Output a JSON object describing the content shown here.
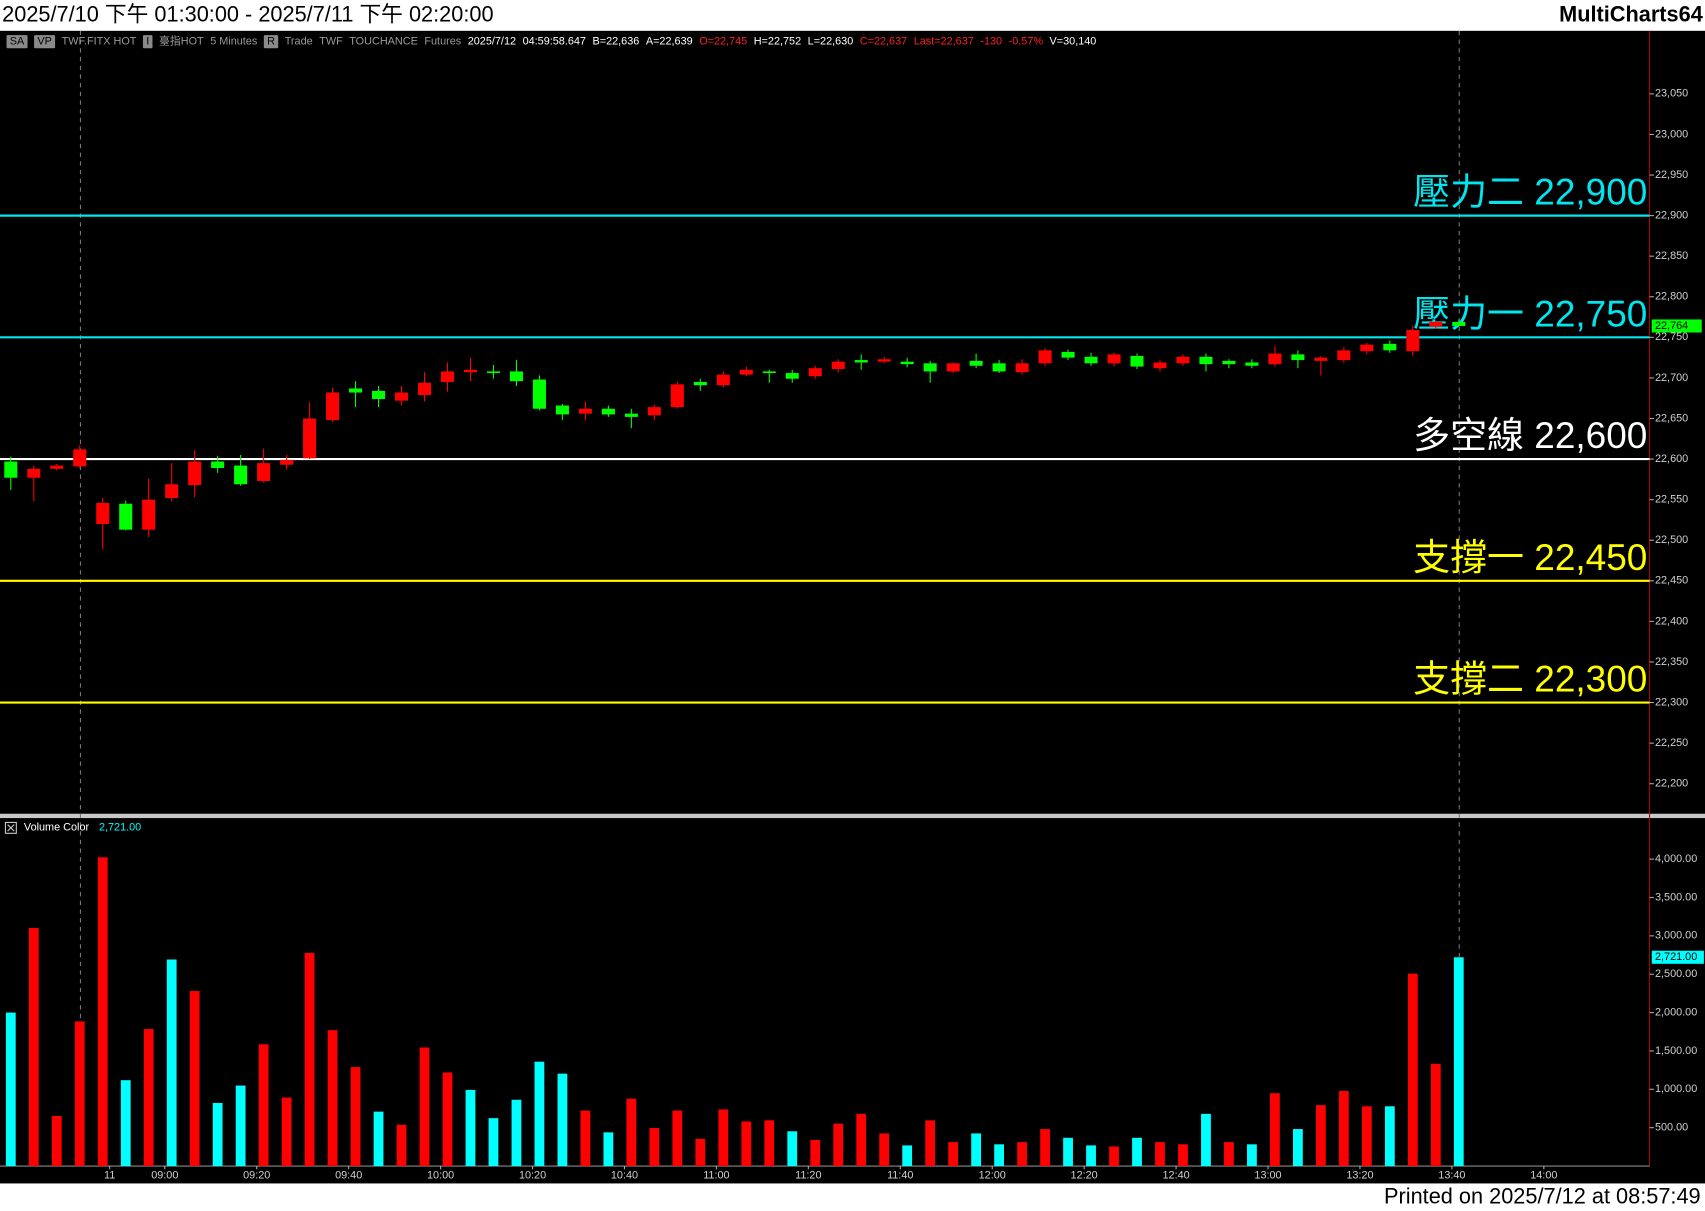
{
  "window": {
    "title": "2025/7/10 下午 01:30:00 - 2025/7/11 下午 02:20:00",
    "app": "MultiCharts64"
  },
  "info_bar": [
    {
      "text": "SA",
      "color": "#000000",
      "box": true
    },
    {
      "text": "VP",
      "color": "#000000",
      "box": true
    },
    {
      "text": "TWF.FITX HOT",
      "color": "#9a9a9a"
    },
    {
      "text": "I",
      "color": "#000000",
      "box": true
    },
    {
      "text": "臺指HOT",
      "color": "#9a9a9a"
    },
    {
      "text": "5 Minutes",
      "color": "#9a9a9a"
    },
    {
      "text": "R",
      "color": "#000000",
      "box": true
    },
    {
      "text": "Trade",
      "color": "#9a9a9a"
    },
    {
      "text": "TWF",
      "color": "#9a9a9a"
    },
    {
      "text": "TOUCHANCE",
      "color": "#9a9a9a"
    },
    {
      "text": "Futures",
      "color": "#9a9a9a"
    },
    {
      "text": "2025/7/12",
      "color": "#ffffff"
    },
    {
      "text": "04:59:58.647",
      "color": "#ffffff"
    },
    {
      "text": "B=22,636",
      "color": "#ffffff"
    },
    {
      "text": "A=22,639",
      "color": "#ffffff"
    },
    {
      "text": "O=22,745",
      "color": "#ff2020"
    },
    {
      "text": "H=22,752",
      "color": "#ffffff"
    },
    {
      "text": "L=22,630",
      "color": "#ffffff"
    },
    {
      "text": "C=22,637",
      "color": "#ff2020"
    },
    {
      "text": "Last=22,637",
      "color": "#ff2020"
    },
    {
      "text": "-130",
      "color": "#ff2020"
    },
    {
      "text": "-0.57%",
      "color": "#ff2020"
    },
    {
      "text": "V=30,140",
      "color": "#ffffff"
    }
  ],
  "footer": "Printed on 2025/7/12 at 08:57:49",
  "chart_data": [
    {
      "type": "candlestick",
      "categories": [
        null,
        null,
        null,
        null,
        null,
        null,
        null,
        null,
        null,
        null,
        null,
        null,
        null,
        null,
        null,
        null,
        null,
        null,
        null,
        null,
        null,
        null,
        null,
        null,
        null,
        null,
        null,
        null,
        null,
        null,
        null,
        null,
        null,
        null,
        null,
        null,
        null,
        null,
        null,
        null,
        null,
        null,
        null,
        null,
        null,
        null,
        null,
        null,
        null,
        null,
        null,
        null,
        null,
        null,
        null,
        null,
        null,
        null,
        null,
        null,
        null,
        null,
        null,
        null
      ],
      "open": [
        22597,
        22577,
        22588,
        22591,
        22520,
        22545,
        22513,
        22552,
        22568,
        22597,
        22592,
        22573,
        22593,
        22601,
        22648,
        22687,
        22684,
        22672,
        22679,
        22695,
        22707,
        22708,
        22708,
        22698,
        22666,
        22656,
        22662,
        22656,
        22654,
        22664,
        22695,
        22691,
        22704,
        22708,
        22706,
        22702,
        22711,
        22722,
        22720,
        22720,
        22718,
        22708,
        22721,
        22718,
        22707,
        22718,
        22732,
        22726,
        22718,
        22727,
        22712,
        22718,
        22726,
        22721,
        22719,
        22717,
        22729,
        22721,
        22722,
        22733,
        22742,
        22733,
        22763,
        22769
      ],
      "high": [
        22603,
        22592,
        22594,
        22617,
        22552,
        22549,
        22576,
        22595,
        22611,
        22604,
        22605,
        22613,
        22605,
        22670,
        22688,
        22696,
        22690,
        22690,
        22707,
        22719,
        22725,
        22716,
        22722,
        22703,
        22668,
        22671,
        22666,
        22662,
        22667,
        22695,
        22699,
        22708,
        22714,
        22710,
        22710,
        22715,
        22723,
        22729,
        22726,
        22725,
        22721,
        22719,
        22730,
        22722,
        22723,
        22737,
        22735,
        22731,
        22731,
        22730,
        22722,
        22729,
        22730,
        22723,
        22723,
        22739,
        22734,
        22727,
        22738,
        22743,
        22746,
        22765,
        22771,
        22772
      ],
      "low": [
        22562,
        22548,
        22586,
        22589,
        22489,
        22512,
        22504,
        22548,
        22553,
        22583,
        22567,
        22571,
        22587,
        22600,
        22646,
        22664,
        22664,
        22666,
        22671,
        22683,
        22696,
        22699,
        22690,
        22660,
        22648,
        22648,
        22652,
        22638,
        22648,
        22662,
        22684,
        22688,
        22702,
        22694,
        22694,
        22699,
        22707,
        22710,
        22718,
        22713,
        22694,
        22706,
        22712,
        22706,
        22704,
        22715,
        22722,
        22715,
        22714,
        22711,
        22708,
        22715,
        22708,
        22712,
        22712,
        22714,
        22712,
        22703,
        22719,
        22729,
        22731,
        22727,
        22761,
        22763
      ],
      "close": [
        22577,
        22588,
        22592,
        22612,
        22546,
        22513,
        22550,
        22569,
        22597,
        22589,
        22569,
        22595,
        22599,
        22650,
        22682,
        22682,
        22674,
        22682,
        22694,
        22708,
        22710,
        22707,
        22696,
        22662,
        22655,
        22662,
        22655,
        22652,
        22664,
        22692,
        22691,
        22704,
        22710,
        22707,
        22699,
        22712,
        22720,
        22719,
        22723,
        22717,
        22708,
        22718,
        22715,
        22708,
        22718,
        22734,
        22725,
        22718,
        22729,
        22714,
        22719,
        22726,
        22717,
        22717,
        22715,
        22730,
        22722,
        22725,
        22734,
        22741,
        22734,
        22759,
        22769,
        22764
      ],
      "up_color": "#ff0000",
      "down_color": "#00ff00",
      "xlim": [
        -0.47,
        71.3
      ],
      "ylim": [
        22163,
        23125
      ],
      "yticks": [
        {
          "value": 22200,
          "label": "22,200"
        },
        {
          "value": 22250,
          "label": "22,250"
        },
        {
          "value": 22300,
          "label": "22,300"
        },
        {
          "value": 22350,
          "label": "22,350"
        },
        {
          "value": 22400,
          "label": "22,400"
        },
        {
          "value": 22450,
          "label": "22,450"
        },
        {
          "value": 22500,
          "label": "22,500"
        },
        {
          "value": 22550,
          "label": "22,550"
        },
        {
          "value": 22600,
          "label": "22,600"
        },
        {
          "value": 22650,
          "label": "22,650"
        },
        {
          "value": 22700,
          "label": "22,700"
        },
        {
          "value": 22750,
          "label": "22,750"
        },
        {
          "value": 22800,
          "label": "22,800"
        },
        {
          "value": 22850,
          "label": "22,850"
        },
        {
          "value": 22900,
          "label": "22,900"
        },
        {
          "value": 22950,
          "label": "22,950"
        },
        {
          "value": 23000,
          "label": "23,000"
        },
        {
          "value": 23050,
          "label": "23,050"
        }
      ],
      "levels": [
        {
          "value": 22900,
          "label": "壓力二 22,900",
          "color": "#00e5ee"
        },
        {
          "value": 22750,
          "label": "壓力一 22,750",
          "color": "#00e5ee"
        },
        {
          "value": 22600,
          "label": "多空線 22,600",
          "color": "#ffffff"
        },
        {
          "value": 22450,
          "label": "支撐一 22,450",
          "color": "#ffff00"
        },
        {
          "value": 22300,
          "label": "支撐二 22,300",
          "color": "#ffff00"
        }
      ],
      "last_price": {
        "value": 22764,
        "label": "22,764"
      },
      "last_color": "#00ff00"
    },
    {
      "type": "bar",
      "categories": [
        null,
        null,
        null,
        null,
        null,
        null,
        null,
        null,
        null,
        null,
        null,
        null,
        null,
        null,
        null,
        null,
        null,
        null,
        null,
        null,
        null,
        null,
        null,
        null,
        null,
        null,
        null,
        null,
        null,
        null,
        null,
        null,
        null,
        null,
        null,
        null,
        null,
        null,
        null,
        null,
        null,
        null,
        null,
        null,
        null,
        null,
        null,
        null,
        null,
        null,
        null,
        null,
        null,
        null,
        null,
        null,
        null,
        null,
        null,
        null,
        null,
        null,
        null,
        null
      ],
      "series": [
        {
          "name": "Volume Color",
          "values": [
            2000,
            3103,
            652,
            1885,
            4024,
            1119,
            1785,
            2692,
            2281,
            822,
            1049,
            1587,
            893,
            2777,
            1771,
            1290,
            709,
            538,
            1545,
            1219,
            992,
            624,
            864,
            1360,
            1204,
            723,
            439,
            879,
            496,
            723,
            354,
            737,
            581,
            595,
            453,
            340,
            553,
            680,
            425,
            269,
            595,
            312,
            425,
            283,
            312,
            482,
            368,
            269,
            255,
            368,
            312,
            283,
            680,
            312,
            283,
            949,
            482,
            794,
            978,
            779,
            779,
            2508,
            1332,
            2721
          ],
          "colors": [
            "#00ffff",
            "#ff0000",
            "#ff0000",
            "#ff0000",
            "#ff0000",
            "#00ffff",
            "#ff0000",
            "#00ffff",
            "#ff0000",
            "#00ffff",
            "#00ffff",
            "#ff0000",
            "#ff0000",
            "#ff0000",
            "#ff0000",
            "#ff0000",
            "#00ffff",
            "#ff0000",
            "#ff0000",
            "#ff0000",
            "#00ffff",
            "#00ffff",
            "#00ffff",
            "#00ffff",
            "#00ffff",
            "#ff0000",
            "#00ffff",
            "#ff0000",
            "#ff0000",
            "#ff0000",
            "#ff0000",
            "#ff0000",
            "#ff0000",
            "#ff0000",
            "#00ffff",
            "#ff0000",
            "#ff0000",
            "#ff0000",
            "#ff0000",
            "#00ffff",
            "#ff0000",
            "#ff0000",
            "#00ffff",
            "#00ffff",
            "#ff0000",
            "#ff0000",
            "#00ffff",
            "#00ffff",
            "#ff0000",
            "#00ffff",
            "#ff0000",
            "#ff0000",
            "#00ffff",
            "#ff0000",
            "#00ffff",
            "#ff0000",
            "#00ffff",
            "#ff0000",
            "#ff0000",
            "#ff0000",
            "#00ffff",
            "#ff0000",
            "#ff0000",
            "#00ffff"
          ]
        }
      ],
      "xlim": [
        -0.47,
        71.3
      ],
      "ylim": [
        0,
        4535
      ],
      "yticks": [
        {
          "value": 500,
          "label": "500.00"
        },
        {
          "value": 1000,
          "label": "1,000.00"
        },
        {
          "value": 1500,
          "label": "1,500.00"
        },
        {
          "value": 2000,
          "label": "2,000.00"
        },
        {
          "value": 2500,
          "label": "2,500.00"
        },
        {
          "value": 3000,
          "label": "3,000.00"
        },
        {
          "value": 3500,
          "label": "3,500.00"
        },
        {
          "value": 4000,
          "label": "4,000.00"
        }
      ],
      "xticks": [
        {
          "value": 4.3,
          "label": "11"
        },
        {
          "value": 6.7,
          "label": "09:00"
        },
        {
          "value": 10.7,
          "label": "09:20"
        },
        {
          "value": 14.7,
          "label": "09:40"
        },
        {
          "value": 18.7,
          "label": "10:00"
        },
        {
          "value": 22.7,
          "label": "10:20"
        },
        {
          "value": 26.7,
          "label": "10:40"
        },
        {
          "value": 30.7,
          "label": "11:00"
        },
        {
          "value": 34.7,
          "label": "11:20"
        },
        {
          "value": 38.7,
          "label": "11:40"
        },
        {
          "value": 42.7,
          "label": "12:00"
        },
        {
          "value": 46.7,
          "label": "12:20"
        },
        {
          "value": 50.7,
          "label": "12:40"
        },
        {
          "value": 54.7,
          "label": "13:00"
        },
        {
          "value": 58.7,
          "label": "13:20"
        },
        {
          "value": 62.7,
          "label": "13:40"
        },
        {
          "value": 66.7,
          "label": "14:00"
        }
      ],
      "last_value": {
        "value": 2721,
        "label": "2,721.00"
      },
      "last_color": "#00ffff"
    }
  ]
}
